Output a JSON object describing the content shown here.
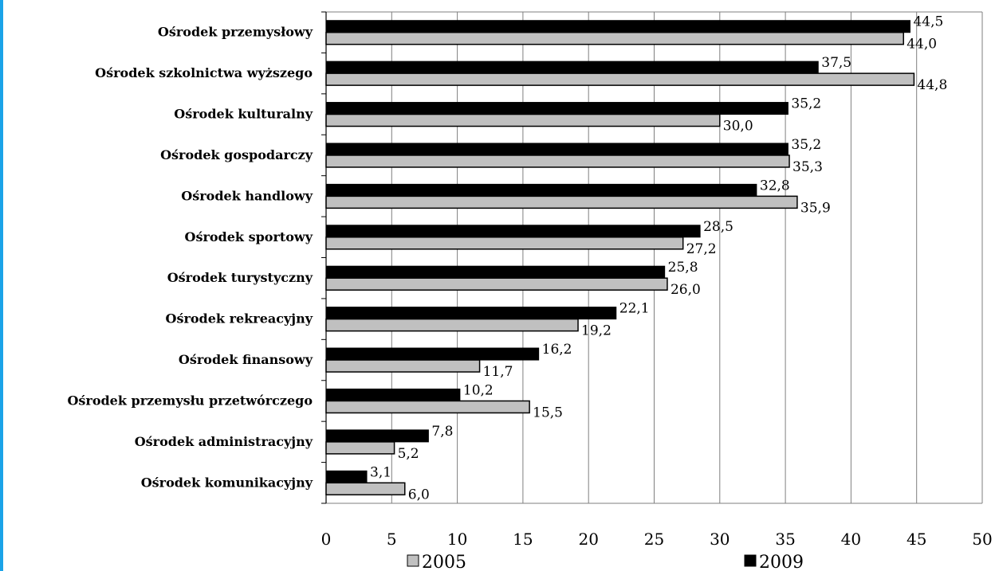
{
  "chart_data": {
    "type": "bar",
    "orientation": "horizontal",
    "categories": [
      "Ośrodek przemysłowy",
      "Ośrodek szkolnictwa wyższego",
      "Ośrodek kulturalny",
      "Ośrodek gospodarczy",
      "Ośrodek handlowy",
      "Ośrodek sportowy",
      "Ośrodek turystyczny",
      "Ośrodek rekreacyjny",
      "Ośrodek finansowy",
      "Ośrodek przemysłu przetwórczego",
      "Ośrodek administracyjny",
      "Ośrodek komunikacyjny"
    ],
    "series": [
      {
        "name": "2009",
        "color": "#000000",
        "values": [
          44.5,
          37.5,
          35.2,
          35.2,
          32.8,
          28.5,
          25.8,
          22.1,
          16.2,
          10.2,
          7.8,
          3.1
        ],
        "labels": [
          "44,5",
          "37,5",
          "35,2",
          "35,2",
          "32,8",
          "28,5",
          "25,8",
          "22,1",
          "16,2",
          "10,2",
          "7,8",
          "3,1"
        ]
      },
      {
        "name": "2005",
        "color": "#c0c0c0",
        "values": [
          44.0,
          44.8,
          30.0,
          35.3,
          35.9,
          27.2,
          26.0,
          19.2,
          11.7,
          15.5,
          5.2,
          6.0
        ],
        "labels": [
          "44,0",
          "44,8",
          "30,0",
          "35,3",
          "35,9",
          "27,2",
          "26,0",
          "19,2",
          "11,7",
          "15,5",
          "5,2",
          "6,0"
        ]
      }
    ],
    "xlim": [
      0,
      50
    ],
    "xticks": [
      0,
      5,
      10,
      15,
      20,
      25,
      30,
      35,
      40,
      45,
      50
    ],
    "xlabel": "",
    "ylabel": "",
    "title": "",
    "grid": "vertical",
    "legend": {
      "position": "bottom",
      "items": [
        "2005",
        "2009"
      ]
    }
  }
}
